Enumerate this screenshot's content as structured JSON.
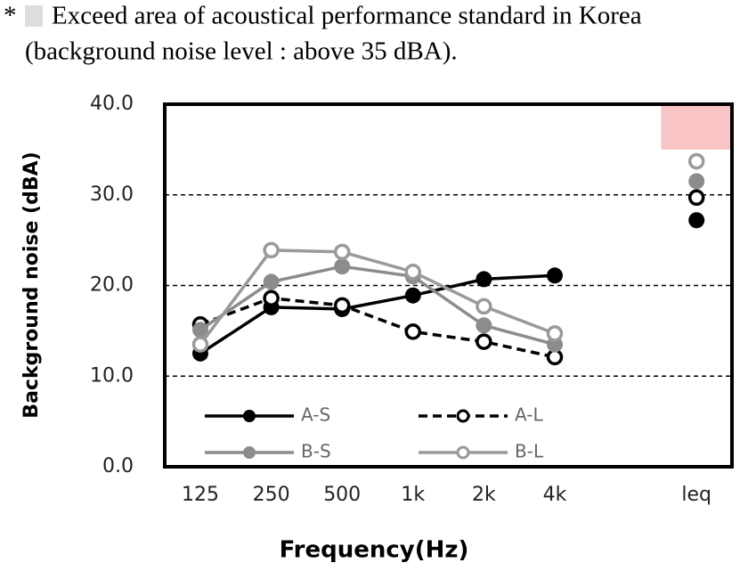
{
  "chart_data": {
    "type": "line",
    "note": {
      "marker": "*",
      "lines": [
        "Exceed area of acoustical performance standard in Korea",
        "(background noise level : above 35 dBA)."
      ]
    },
    "xlabel": "Frequency(Hz)",
    "ylabel": "Background noise (dBA)",
    "categories": [
      "125",
      "250",
      "500",
      "1k",
      "2k",
      "4k",
      null,
      "leq"
    ],
    "ylim": [
      0,
      40
    ],
    "yticks": [
      {
        "value": 0,
        "label": "0.0"
      },
      {
        "value": 10,
        "label": "10.0"
      },
      {
        "value": 20,
        "label": "20.0"
      },
      {
        "value": 30,
        "label": "30.0"
      },
      {
        "value": 40,
        "label": "40.0"
      }
    ],
    "grid": true,
    "shade": {
      "ylim": [
        35,
        40
      ],
      "color": "#f9c4c6"
    },
    "series": [
      {
        "name": "A-S",
        "color": "#000000",
        "filled": true,
        "dashed": false,
        "values": [
          12.5,
          17.6,
          17.4,
          18.9,
          20.7,
          21.1,
          null,
          27.2
        ]
      },
      {
        "name": "A-L",
        "color": "#000000",
        "filled": false,
        "dashed": true,
        "values": [
          15.7,
          18.6,
          17.8,
          14.9,
          13.8,
          12.1,
          null,
          29.7
        ]
      },
      {
        "name": "B-S",
        "color": "#8c8c8c",
        "filled": true,
        "dashed": false,
        "values": [
          15.1,
          20.4,
          22.1,
          21.0,
          15.6,
          13.5,
          null,
          31.5
        ]
      },
      {
        "name": "B-L",
        "color": "#9a9a9a",
        "filled": false,
        "dashed": false,
        "values": [
          13.5,
          23.9,
          23.7,
          21.5,
          17.7,
          14.7,
          null,
          33.7
        ]
      }
    ]
  }
}
